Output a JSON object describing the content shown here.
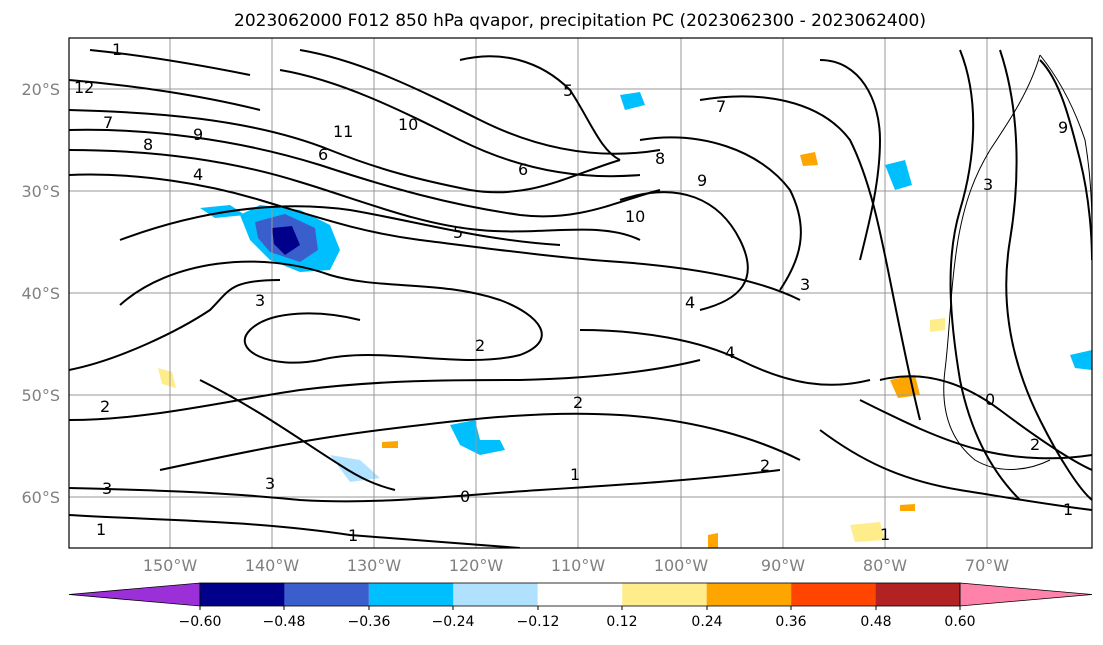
{
  "title": "2023062000 F012 850 hPa qvapor, precipitation PC (2023062300 - 2023062400)",
  "map": {
    "lat_labels": [
      "20°S",
      "30°S",
      "40°S",
      "50°S",
      "60°S"
    ],
    "lon_labels": [
      "150°W",
      "140°W",
      "130°W",
      "120°W",
      "110°W",
      "100°W",
      "90°W",
      "80°W",
      "70°W"
    ],
    "contour_labels": [
      "1",
      "12",
      "9",
      "8",
      "7",
      "11",
      "10",
      "6",
      "5",
      "4",
      "3",
      "2",
      "1",
      "1",
      "0",
      "3",
      "2",
      "2",
      "2",
      "3",
      "4",
      "4",
      "3",
      "5",
      "6",
      "7",
      "8",
      "9",
      "10",
      "3",
      "9",
      "1",
      "1",
      "0",
      "2",
      "1"
    ]
  },
  "colorbar": {
    "tick_labels": [
      "−0.60",
      "−0.48",
      "−0.36",
      "−0.24",
      "−0.12",
      "0.12",
      "0.24",
      "0.36",
      "0.48",
      "0.60"
    ],
    "colors": [
      "#9b30d9",
      "#00008b",
      "#3a5fcd",
      "#00bfff",
      "#b0e2ff",
      "#ffffff",
      "#ffec8b",
      "#ffa500",
      "#ff4500",
      "#b22222",
      "#ff82ab"
    ]
  }
}
